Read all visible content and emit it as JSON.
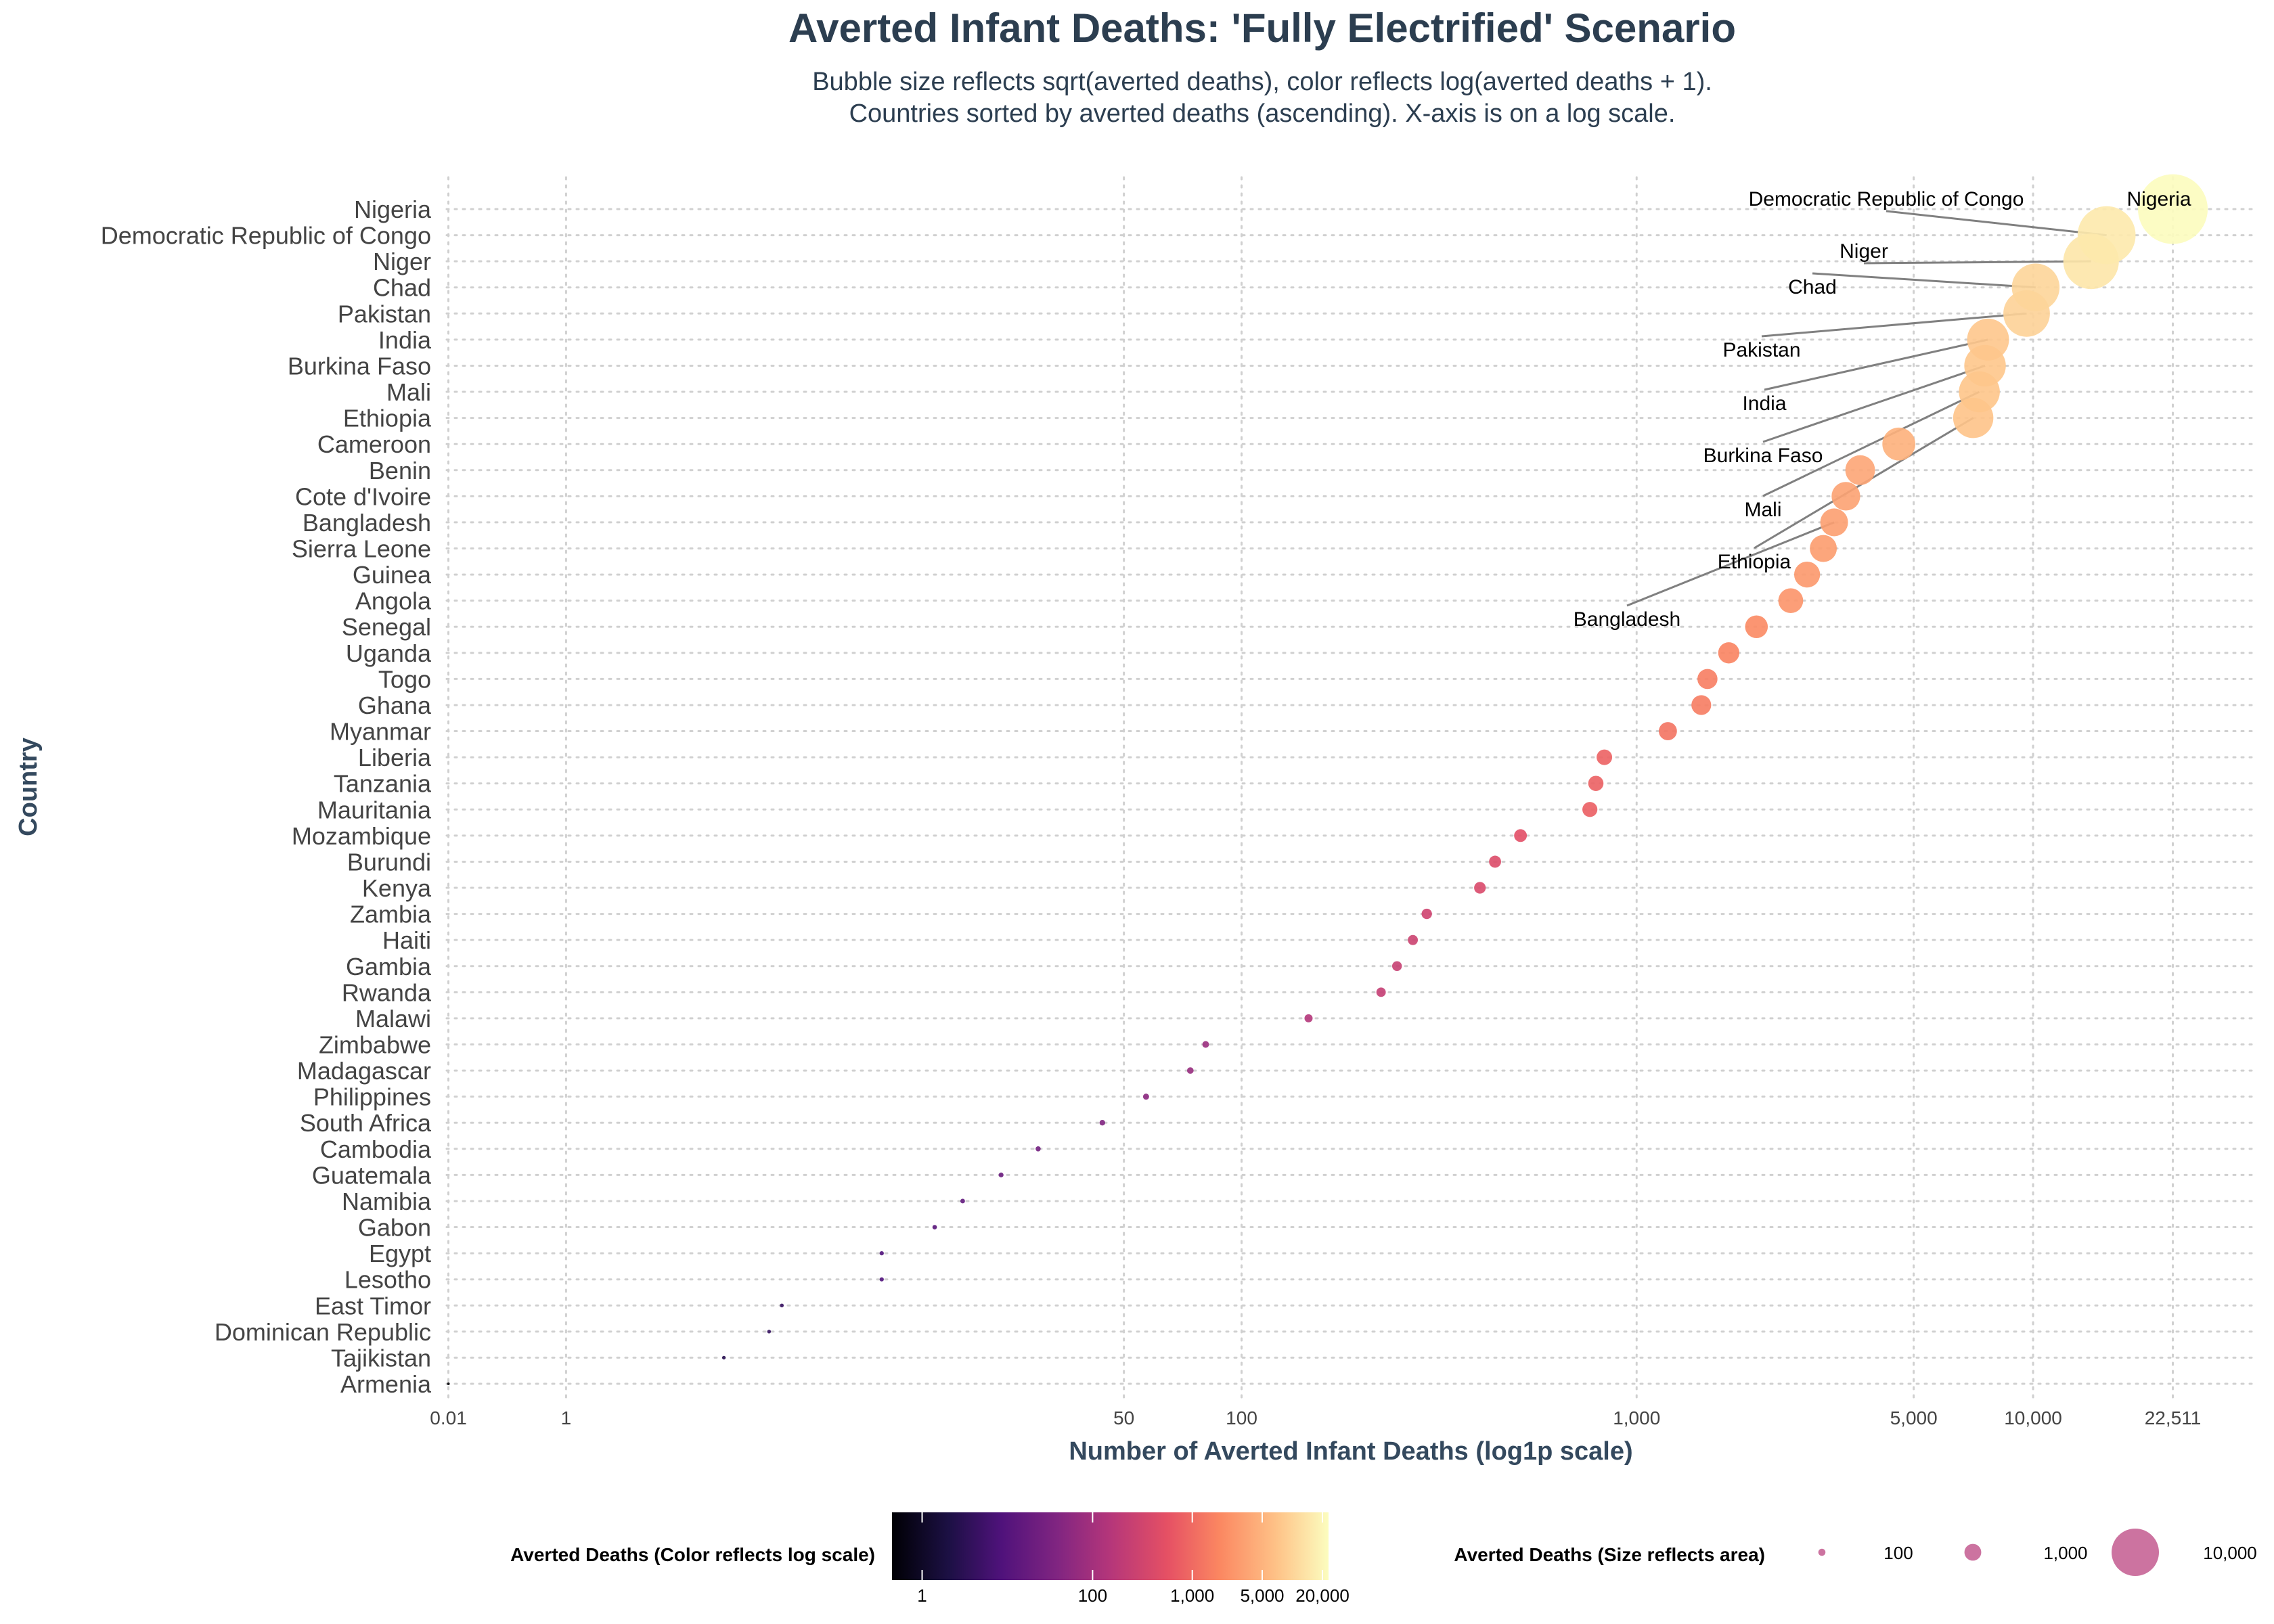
{
  "chart_data": {
    "type": "scatter",
    "title": "Averted Infant Deaths: 'Fully Electrified' Scenario",
    "subtitle": [
      "Bubble size reflects sqrt(averted deaths), color reflects log(averted deaths + 1).",
      "Countries sorted by averted deaths (ascending). X-axis is on a log scale."
    ],
    "xlabel": "Number of Averted Infant Deaths (log1p scale)",
    "ylabel": "Country",
    "x_scale": "log1p",
    "xlim": [
      0,
      36000
    ],
    "x_ticks": [
      0.01,
      1,
      50,
      100,
      1000,
      5000,
      10000,
      22511
    ],
    "x_tick_labels": [
      "0.01",
      "1",
      "50",
      "100",
      "1,000",
      "5,000",
      "10,000",
      "22,511"
    ],
    "grid": true,
    "points": [
      {
        "country": "Armenia",
        "value": 0.01
      },
      {
        "country": "Tajikistan",
        "value": 4
      },
      {
        "country": "Dominican Republic",
        "value": 5.5
      },
      {
        "country": "East Timor",
        "value": 6
      },
      {
        "country": "Lesotho",
        "value": 11.5
      },
      {
        "country": "Egypt",
        "value": 11.5
      },
      {
        "country": "Gabon",
        "value": 16
      },
      {
        "country": "Namibia",
        "value": 19
      },
      {
        "country": "Guatemala",
        "value": 24
      },
      {
        "country": "Cambodia",
        "value": 30
      },
      {
        "country": "South Africa",
        "value": 44
      },
      {
        "country": "Philippines",
        "value": 57
      },
      {
        "country": "Madagascar",
        "value": 74
      },
      {
        "country": "Zimbabwe",
        "value": 81
      },
      {
        "country": "Malawi",
        "value": 148
      },
      {
        "country": "Rwanda",
        "value": 226
      },
      {
        "country": "Gambia",
        "value": 248
      },
      {
        "country": "Haiti",
        "value": 272
      },
      {
        "country": "Zambia",
        "value": 295
      },
      {
        "country": "Kenya",
        "value": 402
      },
      {
        "country": "Burundi",
        "value": 439
      },
      {
        "country": "Mozambique",
        "value": 509
      },
      {
        "country": "Mauritania",
        "value": 762
      },
      {
        "country": "Tanzania",
        "value": 789
      },
      {
        "country": "Liberia",
        "value": 829
      },
      {
        "country": "Myanmar",
        "value": 1199
      },
      {
        "country": "Ghana",
        "value": 1456
      },
      {
        "country": "Togo",
        "value": 1509
      },
      {
        "country": "Uganda",
        "value": 1708
      },
      {
        "country": "Senegal",
        "value": 2006
      },
      {
        "country": "Angola",
        "value": 2448
      },
      {
        "country": "Guinea",
        "value": 2692
      },
      {
        "country": "Sierra Leone",
        "value": 2958
      },
      {
        "country": "Bangladesh",
        "value": 3150
      },
      {
        "country": "Cote d'Ivoire",
        "value": 3372
      },
      {
        "country": "Benin",
        "value": 3664
      },
      {
        "country": "Cameroon",
        "value": 4586
      },
      {
        "country": "Ethiopia",
        "value": 7065
      },
      {
        "country": "Mali",
        "value": 7320
      },
      {
        "country": "Burkina Faso",
        "value": 7566
      },
      {
        "country": "India",
        "value": 7700
      },
      {
        "country": "Pakistan",
        "value": 9632
      },
      {
        "country": "Chad",
        "value": 10153
      },
      {
        "country": "Niger",
        "value": 14005
      },
      {
        "country": "Democratic Republic of Congo",
        "value": 15324
      },
      {
        "country": "Nigeria",
        "value": 22511
      }
    ],
    "annotations": [
      {
        "text": "Nigeria",
        "country": "Nigeria"
      },
      {
        "text": "Democratic Republic of Congo",
        "country": "Democratic Republic of Congo"
      },
      {
        "text": "Niger",
        "country": "Niger"
      },
      {
        "text": "Chad",
        "country": "Chad"
      },
      {
        "text": "Pakistan",
        "country": "Pakistan"
      },
      {
        "text": "India",
        "country": "India"
      },
      {
        "text": "Burkina Faso",
        "country": "Burkina Faso"
      },
      {
        "text": "Mali",
        "country": "Mali"
      },
      {
        "text": "Ethiopia",
        "country": "Ethiopia"
      },
      {
        "text": "Bangladesh",
        "country": "Bangladesh"
      }
    ],
    "color_legend": {
      "title": "Averted Deaths (Color reflects log scale)",
      "colormap": "magma",
      "ticks": [
        1,
        100,
        1000,
        5000,
        20000
      ],
      "tick_labels": [
        "1",
        "100",
        "1,000",
        "5,000",
        "20,000"
      ],
      "range": [
        0,
        23000
      ]
    },
    "size_legend": {
      "title": "Averted Deaths (Size reflects area)",
      "values": [
        100,
        1000,
        10000
      ],
      "labels": [
        "100",
        "1,000",
        "10,000"
      ],
      "color": "#c96b9b"
    }
  }
}
